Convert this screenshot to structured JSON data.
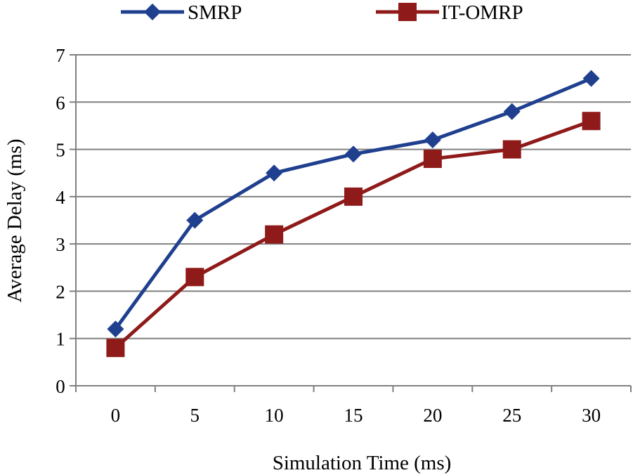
{
  "chart_data": {
    "type": "line",
    "title": "",
    "xlabel": "Simulation Time (ms)",
    "ylabel": "Average Delay (ms)",
    "categories": [
      "0",
      "5",
      "10",
      "15",
      "20",
      "25",
      "30"
    ],
    "ylim": [
      0,
      7
    ],
    "yticks": [
      "0",
      "1",
      "2",
      "3",
      "4",
      "5",
      "6",
      "7"
    ],
    "grid": "horizontal",
    "legend_position": "top",
    "series": [
      {
        "name": "SMRP",
        "color": "#1f3f8f",
        "marker": "diamond",
        "values": [
          1.2,
          3.5,
          4.5,
          4.9,
          5.2,
          5.8,
          6.5
        ]
      },
      {
        "name": "IT-OMRP",
        "color": "#8f1a1a",
        "marker": "square",
        "values": [
          0.8,
          2.3,
          3.2,
          4.0,
          4.8,
          5.0,
          5.6
        ]
      }
    ]
  }
}
